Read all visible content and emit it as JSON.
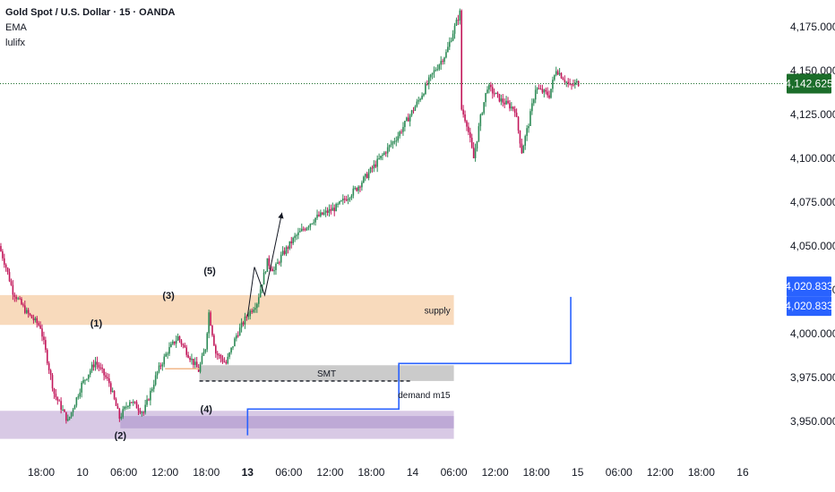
{
  "legend": {
    "title": "Gold Spot / U.S. Dollar · 15 · OANDA",
    "indicator_1": "EMA",
    "indicator_2": "lulifx"
  },
  "colors": {
    "bull": "#2e8b57",
    "bear": "#c2185b",
    "supply_zone": "#f8d8b8",
    "smt_zone": "#c8c8c8",
    "demand_zone": "#d6c6e4",
    "demand_zone_inner": "#b39bd0",
    "blue_line": "#2962ff",
    "last_price_badge": "#1b6d2a",
    "projection_badge": "#2962ff"
  },
  "chart_data": {
    "type": "candlestick",
    "symbol": "Gold Spot / U.S. Dollar",
    "interval": "15",
    "source": "OANDA",
    "y_axis": {
      "ticks": [
        "4,175.000",
        "4,150.000",
        "4,125.000",
        "4,100.000",
        "4,075.000",
        "4,050.000",
        "4,025.000",
        "4,000.000",
        "3,975.000",
        "3,950.000"
      ],
      "tick_values": [
        4175,
        4150,
        4125,
        4100,
        4075,
        4050,
        4025,
        4000,
        3975,
        3950
      ],
      "range": [
        3940,
        4185
      ]
    },
    "x_axis": {
      "ticks": [
        "18:00",
        "10",
        "06:00",
        "12:00",
        "18:00",
        "13",
        "06:00",
        "12:00",
        "18:00",
        "14",
        "06:00",
        "12:00",
        "18:00",
        "15",
        "06:00",
        "12:00",
        "18:00",
        "16"
      ],
      "bold_ticks": [
        "13"
      ],
      "range_hours": [
        "11 12:00",
        "16 06:00"
      ]
    },
    "price_path": [
      {
        "t": "11 12:00",
        "p": 4050
      },
      {
        "t": "11 13:00",
        "p": 4038
      },
      {
        "t": "11 14:00",
        "p": 4024
      },
      {
        "t": "11 16:00",
        "p": 4012
      },
      {
        "t": "11 18:00",
        "p": 4004
      },
      {
        "t": "11 20:00",
        "p": 3966
      },
      {
        "t": "11 22:00",
        "p": 3950
      },
      {
        "t": "12 00:00",
        "p": 3971
      },
      {
        "t": "12 02:00",
        "p": 3984
      },
      {
        "t": "12 04:00",
        "p": 3972
      },
      {
        "t": "12 05:30",
        "p": 3952
      },
      {
        "t": "12 07:00",
        "p": 3962
      },
      {
        "t": "12 09:00",
        "p": 3955
      },
      {
        "t": "12 11:00",
        "p": 3978
      },
      {
        "t": "12 12:30",
        "p": 3990
      },
      {
        "t": "12 14:00",
        "p": 3998
      },
      {
        "t": "12 16:00",
        "p": 3985
      },
      {
        "t": "12 17:00",
        "p": 3979
      },
      {
        "t": "12 18:00",
        "p": 3992
      },
      {
        "t": "12 18:30",
        "p": 4012
      },
      {
        "t": "12 19:30",
        "p": 3989
      },
      {
        "t": "12 21:00",
        "p": 3983
      },
      {
        "t": "12 22:30",
        "p": 3999
      },
      {
        "t": "13 00:00",
        "p": 4010
      },
      {
        "t": "13 01:30",
        "p": 4018
      },
      {
        "t": "13 03:00",
        "p": 4041
      },
      {
        "t": "13 04:00",
        "p": 4036
      },
      {
        "t": "13 05:00",
        "p": 4044
      },
      {
        "t": "13 07:00",
        "p": 4055
      },
      {
        "t": "13 10:00",
        "p": 4066
      },
      {
        "t": "13 13:00",
        "p": 4072
      },
      {
        "t": "13 16:00",
        "p": 4083
      },
      {
        "t": "13 19:00",
        "p": 4098
      },
      {
        "t": "13 22:00",
        "p": 4113
      },
      {
        "t": "14 01:00",
        "p": 4133
      },
      {
        "t": "14 03:00",
        "p": 4148
      },
      {
        "t": "14 05:00",
        "p": 4160
      },
      {
        "t": "14 06:00",
        "p": 4172
      },
      {
        "t": "14 07:00",
        "p": 4183
      },
      {
        "t": "14 07:15",
        "p": 4128
      },
      {
        "t": "14 08:00",
        "p": 4120
      },
      {
        "t": "14 09:00",
        "p": 4100
      },
      {
        "t": "14 10:00",
        "p": 4123
      },
      {
        "t": "14 11:00",
        "p": 4141
      },
      {
        "t": "14 13:00",
        "p": 4133
      },
      {
        "t": "14 15:00",
        "p": 4128
      },
      {
        "t": "14 16:00",
        "p": 4104
      },
      {
        "t": "14 17:00",
        "p": 4120
      },
      {
        "t": "14 18:00",
        "p": 4140
      },
      {
        "t": "14 20:00",
        "p": 4136
      },
      {
        "t": "14 21:00",
        "p": 4151
      },
      {
        "t": "14 23:00",
        "p": 4141
      },
      {
        "t": "15 00:00",
        "p": 4143
      }
    ],
    "last_price": {
      "value": 4142.625,
      "label": "4,142.625"
    },
    "projection_labels": [
      "4,020.833",
      "4,020.833"
    ],
    "zones": [
      {
        "name": "supply",
        "label": "supply",
        "from": "11 12:00",
        "to": "14 06:00",
        "top": 4022,
        "bottom": 4005
      },
      {
        "name": "smt",
        "label": "SMT",
        "from": "12 17:00",
        "to": "14 06:00",
        "top": 3982,
        "bottom": 3973
      },
      {
        "name": "demand",
        "label": "demand m15",
        "from": "11 12:00",
        "to": "14 06:00",
        "top": 3956,
        "bottom": 3940
      }
    ],
    "smt_dashed_level": {
      "value": 3973,
      "from": "12 17:00",
      "to": "14 00:00"
    },
    "wave_labels": [
      {
        "text": "(1)",
        "t": "12 02:00",
        "p": 4004
      },
      {
        "text": "(2)",
        "t": "12 05:30",
        "p": 3940
      },
      {
        "text": "(3)",
        "t": "12 12:30",
        "p": 4020
      },
      {
        "text": "(4)",
        "t": "12 18:00",
        "p": 3955
      },
      {
        "text": "(5)",
        "t": "12 18:30",
        "p": 4034
      }
    ],
    "zigzag": [
      {
        "t": "13 00:00",
        "p": 4010
      },
      {
        "t": "13 01:00",
        "p": 4038
      },
      {
        "t": "13 02:30",
        "p": 4022
      },
      {
        "t": "13 05:00",
        "p": 4069
      }
    ],
    "blue_projection_line": [
      {
        "t": "13 00:00",
        "p": 3942
      },
      {
        "t": "13 00:00",
        "p": 3957
      },
      {
        "t": "13 22:00",
        "p": 3957
      },
      {
        "t": "13 22:00",
        "p": 3983
      },
      {
        "t": "14 23:00",
        "p": 3983
      },
      {
        "t": "14 23:00",
        "p": 4021
      }
    ]
  }
}
